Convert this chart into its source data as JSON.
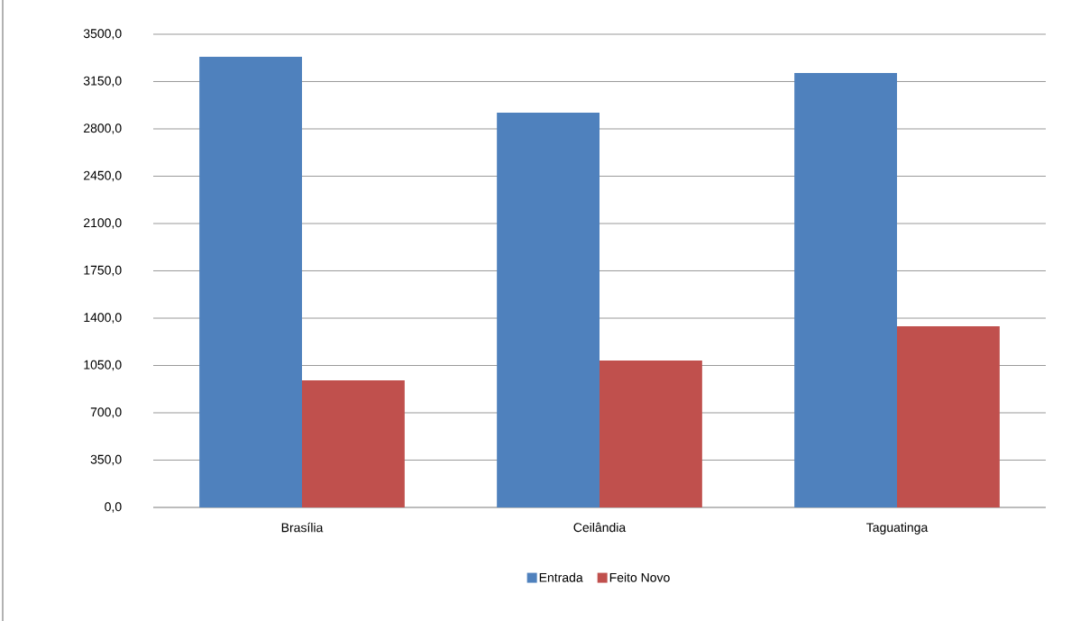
{
  "chart_data": {
    "type": "bar",
    "categories": [
      "Brasília",
      "Ceilândia",
      "Taguatinga"
    ],
    "series": [
      {
        "name": "Entrada",
        "color": "#4f81bd",
        "values": [
          3333,
          2920,
          3213
        ]
      },
      {
        "name": "Feito Novo",
        "color": "#c0504d",
        "values": [
          940,
          1087,
          1340
        ]
      }
    ],
    "ylim": [
      0,
      3500
    ],
    "yticks": [
      {
        "value": 0,
        "label": "0,0"
      },
      {
        "value": 350,
        "label": "350,0"
      },
      {
        "value": 700,
        "label": "700,0"
      },
      {
        "value": 1050,
        "label": "1050,0"
      },
      {
        "value": 1400,
        "label": "1400,0"
      },
      {
        "value": 1750,
        "label": "1750,0"
      },
      {
        "value": 2100,
        "label": "2100,0"
      },
      {
        "value": 2450,
        "label": "2450,0"
      },
      {
        "value": 2800,
        "label": "2800,0"
      },
      {
        "value": 3150,
        "label": "3150,0"
      },
      {
        "value": 3500,
        "label": "3500,0"
      }
    ],
    "grid": "y",
    "legend": "bottom"
  }
}
